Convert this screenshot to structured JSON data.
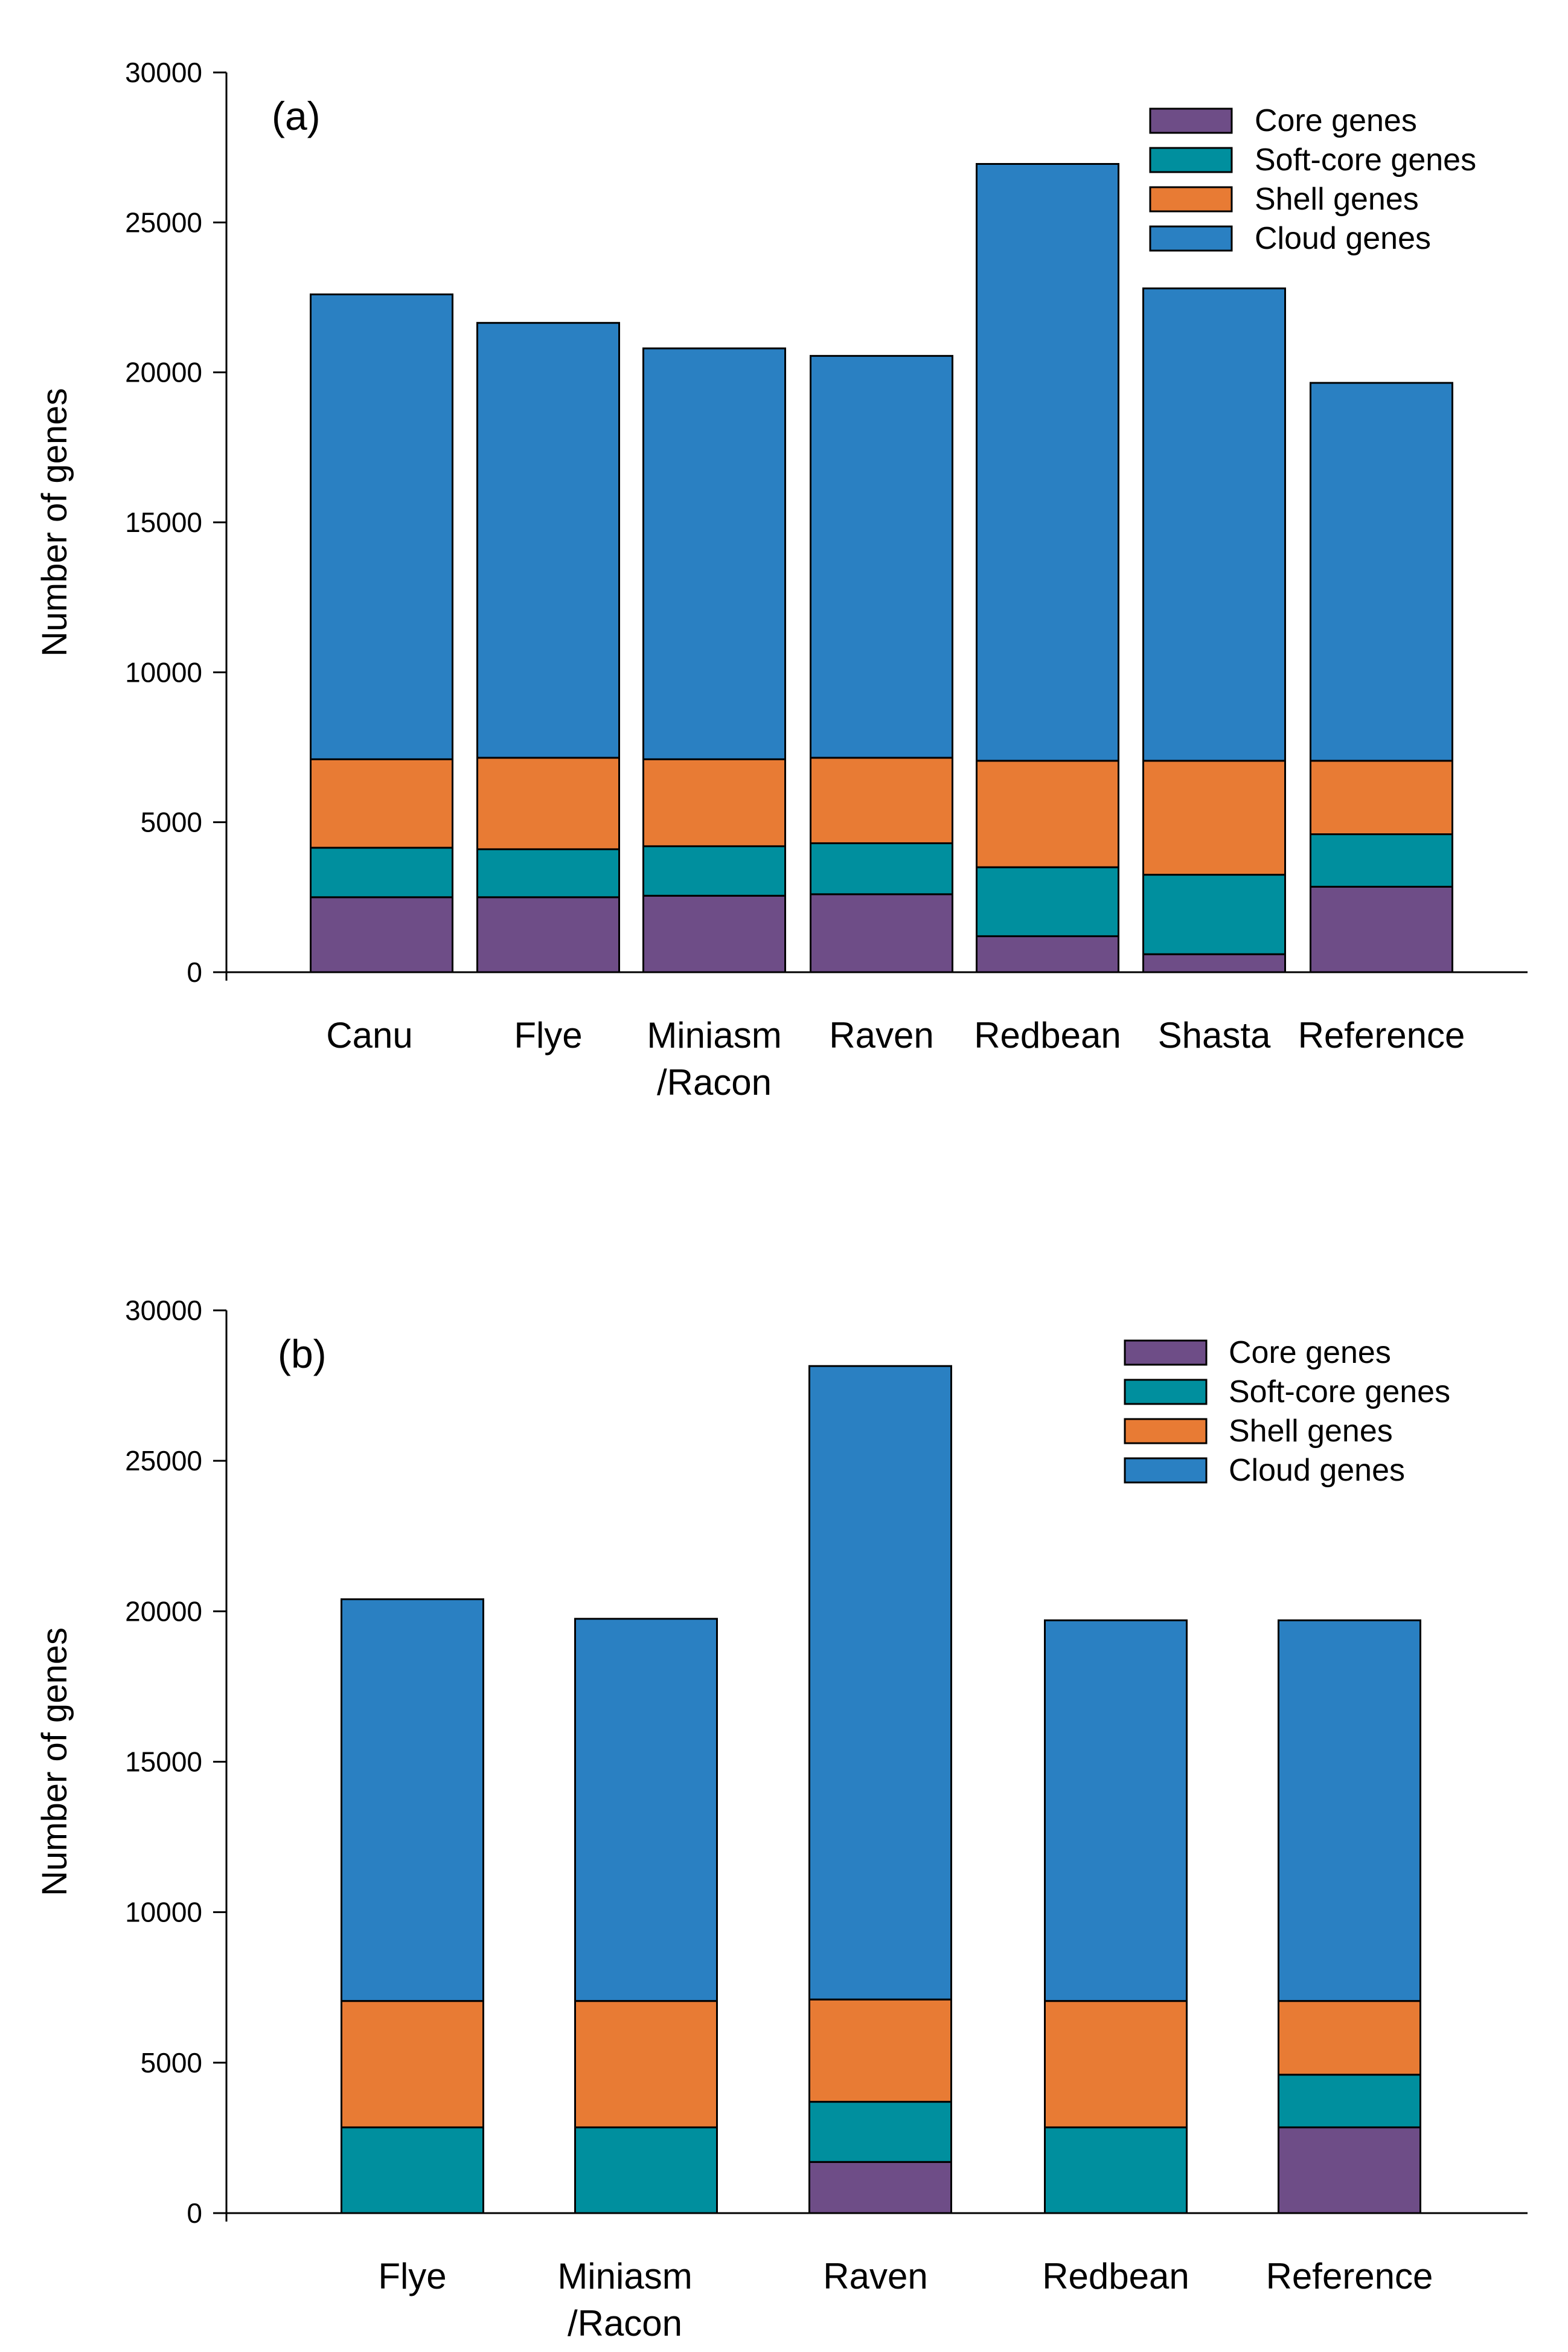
{
  "colors": {
    "core": "#6e4d87",
    "softcore": "#008f9e",
    "shell": "#e87b34",
    "cloud": "#2a80c2",
    "axis": "#000000"
  },
  "chart_data": [
    {
      "type": "bar",
      "stacked": true,
      "panel_label": "(a)",
      "ylabel": "Number of genes",
      "xlabel": "",
      "ylim": [
        0,
        30000
      ],
      "yticks": [
        "0",
        "5000",
        "10000",
        "15000",
        "20000",
        "25000",
        "30000"
      ],
      "categories": [
        "Canu",
        "Flye",
        "Miniasm/Racon",
        "Raven",
        "Redbean",
        "Shasta",
        "Reference"
      ],
      "category_lines": [
        [
          "Canu"
        ],
        [
          "Flye"
        ],
        [
          "Miniasm",
          "/Racon"
        ],
        [
          "Raven"
        ],
        [
          "Redbean"
        ],
        [
          "Shasta"
        ],
        [
          "Reference"
        ]
      ],
      "legend_position": "top-right",
      "series": [
        {
          "name": "Core genes",
          "key": "core",
          "values": [
            2500,
            2500,
            2550,
            2600,
            1200,
            600,
            2850
          ]
        },
        {
          "name": "Soft-core genes",
          "key": "softcore",
          "values": [
            1650,
            1600,
            1650,
            1700,
            2300,
            2650,
            1750
          ]
        },
        {
          "name": "Shell genes",
          "key": "shell",
          "values": [
            2950,
            3050,
            2900,
            2850,
            3550,
            3800,
            2450
          ]
        },
        {
          "name": "Cloud genes",
          "key": "cloud",
          "values": [
            15500,
            14500,
            13700,
            13400,
            19900,
            15750,
            12600
          ]
        }
      ]
    },
    {
      "type": "bar",
      "stacked": true,
      "panel_label": "(b)",
      "ylabel": "Number of genes",
      "xlabel": "",
      "ylim": [
        0,
        30000
      ],
      "yticks": [
        "0",
        "5000",
        "10000",
        "15000",
        "20000",
        "25000",
        "30000"
      ],
      "categories": [
        "Flye",
        "Miniasm/Racon",
        "Raven",
        "Redbean",
        "Reference"
      ],
      "category_lines": [
        [
          "Flye"
        ],
        [
          "Miniasm",
          "/Racon"
        ],
        [
          "Raven"
        ],
        [
          "Redbean"
        ],
        [
          "Reference"
        ]
      ],
      "legend_position": "top-right",
      "series": [
        {
          "name": "Core genes",
          "key": "core",
          "values": [
            0,
            0,
            1700,
            0,
            2850
          ]
        },
        {
          "name": "Soft-core genes",
          "key": "softcore",
          "values": [
            2850,
            2850,
            2000,
            2850,
            1750
          ]
        },
        {
          "name": "Shell genes",
          "key": "shell",
          "values": [
            4200,
            4200,
            3400,
            4200,
            2450
          ]
        },
        {
          "name": "Cloud genes",
          "key": "cloud",
          "values": [
            13350,
            12700,
            21050,
            12650,
            12650
          ]
        }
      ]
    }
  ]
}
